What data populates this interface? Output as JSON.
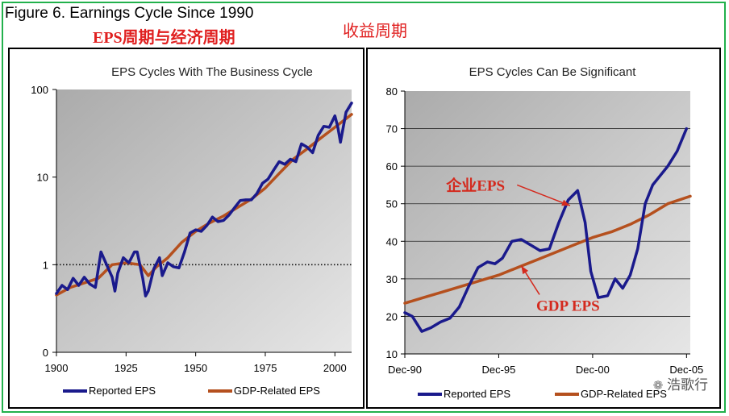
{
  "figure_title": "Figure 6.  Earnings Cycle Since 1990",
  "subtitle_cn": "EPS周期与经济周期",
  "subtitle_cn2": "收益周期",
  "watermark": "浩歌行",
  "colors": {
    "reported": "#1a1a8c",
    "gdp": "#b5501e",
    "frame": "#22b14c",
    "annotation": "#d42a1e"
  },
  "chart_data": [
    {
      "type": "line",
      "title": "EPS Cycles With The Business Cycle",
      "yscale": "log",
      "ylim": [
        0.1,
        100
      ],
      "yticks": [
        {
          "value": 100,
          "label": "100"
        },
        {
          "value": 10,
          "label": "10"
        },
        {
          "value": 1,
          "label": "1"
        },
        {
          "value": 0.1,
          "label": "0"
        }
      ],
      "xlim": [
        1900,
        2006
      ],
      "xticks": [
        1900,
        1925,
        1950,
        1975,
        2000
      ],
      "legend_position": "bottom",
      "series": [
        {
          "name": "Reported EPS",
          "x": [
            1900,
            1902,
            1904,
            1906,
            1908,
            1910,
            1912,
            1914,
            1916,
            1918,
            1920,
            1921,
            1922,
            1924,
            1926,
            1928,
            1929,
            1931,
            1932,
            1933,
            1935,
            1937,
            1938,
            1940,
            1942,
            1944,
            1946,
            1948,
            1950,
            1952,
            1954,
            1956,
            1958,
            1960,
            1962,
            1964,
            1966,
            1968,
            1970,
            1972,
            1974,
            1976,
            1978,
            1980,
            1982,
            1984,
            1986,
            1988,
            1990,
            1992,
            1994,
            1996,
            1998,
            2000,
            2001,
            2002,
            2004,
            2006
          ],
          "y": [
            0.47,
            0.58,
            0.52,
            0.7,
            0.58,
            0.72,
            0.6,
            0.55,
            1.4,
            1.0,
            0.72,
            0.5,
            0.8,
            1.2,
            1.05,
            1.4,
            1.4,
            0.7,
            0.44,
            0.5,
            0.9,
            1.2,
            0.75,
            1.05,
            0.95,
            0.92,
            1.4,
            2.3,
            2.5,
            2.4,
            2.8,
            3.5,
            3.1,
            3.2,
            3.7,
            4.5,
            5.4,
            5.5,
            5.5,
            6.5,
            8.5,
            9.5,
            12.0,
            15.0,
            14.0,
            16.0,
            15.0,
            24.0,
            22.0,
            19.0,
            30.0,
            38.0,
            37.0,
            50.0,
            38.0,
            25.0,
            55.0,
            70.0
          ]
        },
        {
          "name": "GDP-Related EPS",
          "x": [
            1900,
            1905,
            1910,
            1915,
            1920,
            1925,
            1930,
            1933,
            1936,
            1940,
            1945,
            1950,
            1955,
            1960,
            1965,
            1970,
            1975,
            1980,
            1985,
            1990,
            1995,
            2000,
            2006
          ],
          "y": [
            0.45,
            0.55,
            0.62,
            0.7,
            1.0,
            1.05,
            1.0,
            0.75,
            0.95,
            1.2,
            1.8,
            2.4,
            3.0,
            3.6,
            4.5,
            5.6,
            7.5,
            11.0,
            16.0,
            21.0,
            28.0,
            37.0,
            52.0
          ]
        }
      ]
    },
    {
      "type": "line",
      "title": "EPS Cycles Can Be Significant",
      "ylim": [
        10,
        80
      ],
      "yticks": [
        10,
        20,
        30,
        40,
        50,
        60,
        70,
        80
      ],
      "xlim": [
        0,
        15.2
      ],
      "xticks": [
        {
          "value": 0,
          "label": "Dec-90"
        },
        {
          "value": 5,
          "label": "Dec-95"
        },
        {
          "value": 10,
          "label": "Dec-00"
        },
        {
          "value": 15,
          "label": "Dec-05"
        }
      ],
      "legend_position": "bottom",
      "annotations": [
        {
          "text": "企业EPS",
          "x": 2.2,
          "y": 53.5,
          "arrow_to": [
            8.8,
            49.5
          ]
        },
        {
          "text": "GDP EPS",
          "x": 7.0,
          "y": 21.5,
          "arrow_to": [
            6.2,
            33.5
          ]
        }
      ],
      "series": [
        {
          "name": "Reported EPS",
          "x": [
            0,
            0.4,
            0.9,
            1.4,
            1.9,
            2.4,
            2.9,
            3.4,
            3.9,
            4.4,
            4.8,
            5.2,
            5.7,
            6.2,
            6.7,
            7.2,
            7.7,
            8.2,
            8.7,
            9.2,
            9.6,
            9.9,
            10.3,
            10.8,
            11.2,
            11.6,
            12.0,
            12.4,
            12.8,
            13.2,
            13.6,
            14.0,
            14.5,
            15.0
          ],
          "y": [
            21,
            20,
            16,
            17,
            18.5,
            19.5,
            22.5,
            28,
            33,
            34.5,
            34,
            35.5,
            40,
            40.5,
            39,
            37.5,
            38,
            45,
            51,
            53.5,
            45,
            32,
            25,
            25.5,
            30,
            27.5,
            31,
            38,
            50,
            55,
            57.5,
            60,
            64,
            70
          ]
        },
        {
          "name": "GDP-Related EPS",
          "x": [
            0,
            1,
            2,
            3,
            4,
            5,
            6,
            7,
            8,
            9,
            10,
            11,
            12,
            13,
            14,
            15.2
          ],
          "y": [
            23.5,
            25,
            26.5,
            28,
            29.5,
            31,
            33,
            35,
            37,
            39,
            41,
            42.5,
            44.5,
            47,
            50,
            52
          ]
        }
      ]
    }
  ]
}
